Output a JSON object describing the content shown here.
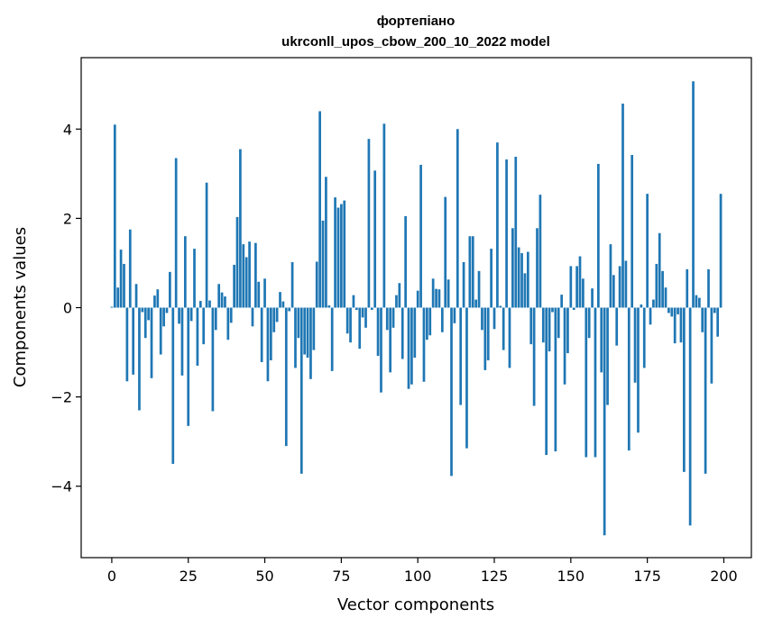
{
  "chart_data": {
    "type": "bar",
    "title": "фортепіано",
    "subtitle": "ukrconll_upos_cbow_200_10_2022 model",
    "xlabel": "Vector components",
    "ylabel": "Components values",
    "xlim": [
      -10,
      209
    ],
    "ylim": [
      -5.6,
      5.6
    ],
    "xticks": [
      0,
      25,
      50,
      75,
      100,
      125,
      150,
      175,
      200
    ],
    "xtick_labels": [
      "0",
      "25",
      "50",
      "75",
      "100",
      "125",
      "150",
      "175",
      "200"
    ],
    "yticks": [
      -4,
      -2,
      0,
      2,
      4
    ],
    "ytick_labels": [
      "−4",
      "−2",
      "0",
      "2",
      "4"
    ],
    "grid": false,
    "color": "#1f77b4",
    "values": [
      0.02,
      4.1,
      0.45,
      1.3,
      0.98,
      -1.65,
      1.75,
      -1.5,
      0.53,
      -2.3,
      -0.1,
      -0.68,
      -0.28,
      -1.58,
      0.27,
      0.41,
      -1.05,
      -0.42,
      -0.12,
      0.8,
      -3.5,
      3.35,
      -0.36,
      -1.52,
      1.6,
      -2.65,
      -0.3,
      1.32,
      -1.3,
      0.15,
      -0.82,
      2.8,
      0.16,
      -2.32,
      -0.5,
      0.53,
      0.34,
      0.25,
      -0.72,
      -0.34,
      0.96,
      2.03,
      3.55,
      1.42,
      1.13,
      1.48,
      -0.42,
      1.45,
      0.58,
      -1.22,
      0.65,
      -1.65,
      -1.18,
      -0.55,
      -0.32,
      0.35,
      0.14,
      -3.1,
      -0.08,
      1.02,
      -1.35,
      -0.68,
      -3.72,
      -1.05,
      -1.12,
      -1.6,
      -0.95,
      1.03,
      4.4,
      1.95,
      2.93,
      0.05,
      -1.42,
      2.47,
      2.24,
      2.32,
      2.4,
      -0.58,
      -0.78,
      0.28,
      -0.05,
      -0.92,
      -0.22,
      -0.45,
      3.78,
      -0.05,
      3.07,
      -1.08,
      -1.9,
      4.12,
      -0.5,
      -1.45,
      -0.45,
      0.28,
      0.55,
      -1.15,
      2.05,
      -1.82,
      -1.72,
      -1.12,
      0.38,
      3.2,
      -1.66,
      -0.72,
      -0.62,
      0.65,
      0.42,
      0.41,
      -0.55,
      2.48,
      0.63,
      -3.77,
      -0.35,
      4.0,
      -2.18,
      1.02,
      -3.15,
      1.6,
      1.6,
      0.18,
      0.82,
      -0.5,
      -1.4,
      -1.18,
      1.32,
      -0.48,
      3.7,
      0.04,
      -0.95,
      3.32,
      -1.35,
      1.78,
      3.38,
      1.35,
      1.22,
      0.77,
      1.25,
      -0.82,
      -2.2,
      1.78,
      2.53,
      -0.78,
      -3.3,
      -0.98,
      -0.1,
      -3.22,
      -0.68,
      0.29,
      -1.72,
      -1.02,
      0.93,
      -0.05,
      0.93,
      1.15,
      0.65,
      -3.35,
      -0.68,
      0.43,
      -3.35,
      3.22,
      -1.45,
      -5.1,
      -2.18,
      1.42,
      0.73,
      -0.85,
      0.93,
      4.57,
      1.05,
      -3.2,
      3.42,
      -1.68,
      -2.8,
      0.07,
      -1.35,
      2.55,
      -0.38,
      0.18,
      0.98,
      1.67,
      0.82,
      0.45,
      -0.12,
      -0.2,
      -0.8,
      -0.15,
      -0.78,
      -3.68,
      0.86,
      -4.88,
      5.07,
      0.28,
      0.22,
      -0.55,
      -3.72,
      0.86,
      -1.7,
      -0.12,
      -0.65,
      2.55
    ]
  }
}
